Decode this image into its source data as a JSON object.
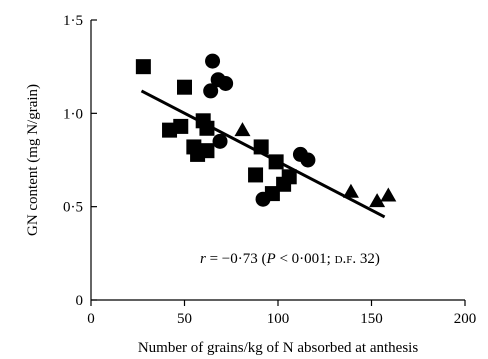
{
  "chart_data": {
    "type": "scatter",
    "title": "",
    "xlabel": "Number of grains/kg of N absorbed at anthesis",
    "ylabel": "GN content (mg N/grain)",
    "xlim": [
      0,
      200
    ],
    "ylim": [
      0,
      1.5
    ],
    "x_ticks": [
      0,
      50,
      100,
      150,
      200
    ],
    "x_tick_labels": [
      "0",
      "50",
      "100",
      "150",
      "200"
    ],
    "y_ticks": [
      0,
      0.5,
      1.0,
      1.5
    ],
    "y_tick_labels": [
      "0",
      "0·5",
      "1·0",
      "1·5"
    ],
    "grid": false,
    "legend": "none",
    "series": [
      {
        "marker": "square",
        "color": "#000000",
        "points": [
          {
            "x": 28,
            "y": 1.25
          },
          {
            "x": 50,
            "y": 1.14
          },
          {
            "x": 42,
            "y": 0.91
          },
          {
            "x": 48,
            "y": 0.93
          },
          {
            "x": 55,
            "y": 0.82
          },
          {
            "x": 57,
            "y": 0.78
          },
          {
            "x": 60,
            "y": 0.96
          },
          {
            "x": 62,
            "y": 0.92
          },
          {
            "x": 62,
            "y": 0.8
          },
          {
            "x": 88,
            "y": 0.67
          },
          {
            "x": 91,
            "y": 0.82
          },
          {
            "x": 97,
            "y": 0.57
          },
          {
            "x": 99,
            "y": 0.74
          },
          {
            "x": 103,
            "y": 0.62
          },
          {
            "x": 106,
            "y": 0.66
          }
        ]
      },
      {
        "marker": "circle",
        "color": "#000000",
        "points": [
          {
            "x": 65,
            "y": 1.28
          },
          {
            "x": 64,
            "y": 1.12
          },
          {
            "x": 68,
            "y": 1.18
          },
          {
            "x": 72,
            "y": 1.16
          },
          {
            "x": 69,
            "y": 0.85
          },
          {
            "x": 92,
            "y": 0.54
          },
          {
            "x": 112,
            "y": 0.78
          },
          {
            "x": 116,
            "y": 0.75
          }
        ]
      },
      {
        "marker": "triangle",
        "color": "#000000",
        "points": [
          {
            "x": 81,
            "y": 0.91
          },
          {
            "x": 139,
            "y": 0.58
          },
          {
            "x": 153,
            "y": 0.53
          },
          {
            "x": 159,
            "y": 0.56
          }
        ]
      }
    ],
    "regression_line": {
      "x": [
        27,
        157
      ],
      "y": [
        1.12,
        0.445
      ]
    },
    "annotation": {
      "r_prefix": "r",
      "r_value": " = −0·73 (",
      "p_prefix": "P",
      "p_value": " < 0·001; ",
      "df_label": "d.f.",
      "df_value": " 32)"
    }
  }
}
